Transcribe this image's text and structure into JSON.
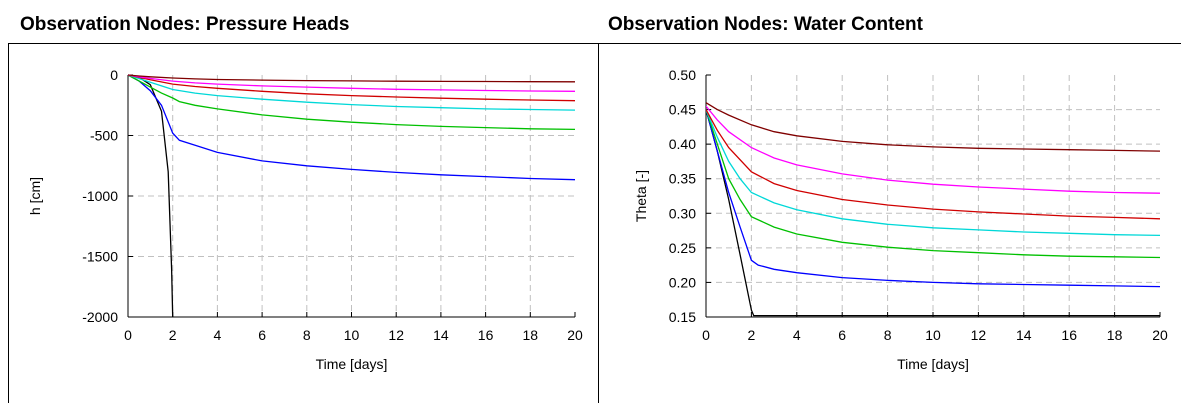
{
  "chart_data": [
    {
      "type": "line",
      "title": "Observation Nodes: Pressure Heads",
      "xlabel": "Time [days]",
      "ylabel": "h [cm]",
      "xlim": [
        0,
        20
      ],
      "ylim": [
        -2000,
        0
      ],
      "xticks": [
        "0",
        "2",
        "4",
        "6",
        "8",
        "10",
        "12",
        "14",
        "16",
        "18",
        "20"
      ],
      "yticks": [
        "-2000",
        "-1500",
        "-1000",
        "-500",
        "0"
      ],
      "grid": true,
      "series": [
        {
          "color": "#000000",
          "x": [
            0,
            0.5,
            1,
            1.5,
            1.8,
            1.95,
            2.0
          ],
          "y": [
            0,
            -20,
            -80,
            -300,
            -800,
            -1600,
            -2000
          ]
        },
        {
          "color": "#0000ff",
          "x": [
            0,
            0.5,
            1,
            1.5,
            2,
            2.3,
            3,
            4,
            6,
            8,
            10,
            12,
            14,
            16,
            18,
            20
          ],
          "y": [
            0,
            -50,
            -130,
            -250,
            -480,
            -540,
            -580,
            -640,
            -710,
            -750,
            -780,
            -805,
            -825,
            -840,
            -855,
            -865
          ]
        },
        {
          "color": "#00c000",
          "x": [
            0,
            0.5,
            1,
            1.5,
            2,
            2.3,
            3,
            4,
            6,
            8,
            10,
            12,
            14,
            16,
            18,
            20
          ],
          "y": [
            0,
            -50,
            -100,
            -150,
            -190,
            -220,
            -250,
            -280,
            -330,
            -365,
            -390,
            -410,
            -425,
            -435,
            -445,
            -450
          ]
        },
        {
          "color": "#00d8d8",
          "x": [
            0,
            0.5,
            1,
            1.5,
            2,
            3,
            4,
            6,
            8,
            10,
            12,
            14,
            16,
            18,
            20
          ],
          "y": [
            0,
            -30,
            -60,
            -90,
            -120,
            -150,
            -170,
            -200,
            -225,
            -245,
            -260,
            -270,
            -280,
            -285,
            -290
          ]
        },
        {
          "color": "#d00000",
          "x": [
            0,
            0.5,
            1,
            2,
            3,
            4,
            6,
            8,
            10,
            12,
            14,
            16,
            18,
            20
          ],
          "y": [
            0,
            -20,
            -40,
            -75,
            -95,
            -110,
            -135,
            -155,
            -170,
            -182,
            -192,
            -200,
            -207,
            -212
          ]
        },
        {
          "color": "#ff00ff",
          "x": [
            0,
            0.5,
            1,
            2,
            3,
            4,
            6,
            8,
            10,
            12,
            14,
            16,
            18,
            20
          ],
          "y": [
            0,
            -15,
            -28,
            -50,
            -65,
            -75,
            -90,
            -100,
            -110,
            -118,
            -123,
            -128,
            -132,
            -135
          ]
        },
        {
          "color": "#800000",
          "x": [
            0,
            0.5,
            1,
            2,
            3,
            4,
            6,
            8,
            10,
            12,
            14,
            16,
            18,
            20
          ],
          "y": [
            0,
            -8,
            -15,
            -25,
            -32,
            -37,
            -42,
            -46,
            -49,
            -51,
            -53,
            -54,
            -55,
            -56
          ]
        }
      ]
    },
    {
      "type": "line",
      "title": "Observation Nodes: Water Content",
      "xlabel": "Time [days]",
      "ylabel": "Theta [-]",
      "xlim": [
        0,
        20
      ],
      "ylim": [
        0.15,
        0.5
      ],
      "xticks": [
        "0",
        "2",
        "4",
        "6",
        "8",
        "10",
        "12",
        "14",
        "16",
        "18",
        "20"
      ],
      "yticks": [
        "0.15",
        "0.20",
        "0.25",
        "0.30",
        "0.35",
        "0.40",
        "0.45",
        "0.50"
      ],
      "grid": true,
      "series": [
        {
          "color": "#000000",
          "x": [
            0,
            0.5,
            1,
            1.5,
            2.0,
            2.1,
            20
          ],
          "y": [
            0.45,
            0.39,
            0.32,
            0.24,
            0.16,
            0.152,
            0.152
          ]
        },
        {
          "color": "#0000ff",
          "x": [
            0,
            0.5,
            1,
            1.5,
            2,
            2.3,
            3,
            4,
            6,
            8,
            10,
            12,
            14,
            16,
            18,
            20
          ],
          "y": [
            0.45,
            0.39,
            0.33,
            0.28,
            0.232,
            0.225,
            0.219,
            0.214,
            0.207,
            0.203,
            0.2,
            0.198,
            0.197,
            0.196,
            0.195,
            0.194
          ]
        },
        {
          "color": "#00c000",
          "x": [
            0,
            0.5,
            1,
            1.5,
            2,
            3,
            4,
            6,
            8,
            10,
            12,
            14,
            16,
            18,
            20
          ],
          "y": [
            0.45,
            0.4,
            0.35,
            0.32,
            0.295,
            0.28,
            0.27,
            0.258,
            0.251,
            0.246,
            0.243,
            0.24,
            0.238,
            0.237,
            0.236
          ]
        },
        {
          "color": "#00d8d8",
          "x": [
            0,
            0.5,
            1,
            1.5,
            2,
            3,
            4,
            6,
            8,
            10,
            12,
            14,
            16,
            18,
            20
          ],
          "y": [
            0.45,
            0.41,
            0.375,
            0.35,
            0.33,
            0.315,
            0.305,
            0.292,
            0.284,
            0.279,
            0.276,
            0.273,
            0.271,
            0.269,
            0.268
          ]
        },
        {
          "color": "#d00000",
          "x": [
            0,
            0.5,
            1,
            2,
            3,
            4,
            6,
            8,
            10,
            12,
            14,
            16,
            18,
            20
          ],
          "y": [
            0.45,
            0.42,
            0.395,
            0.36,
            0.343,
            0.333,
            0.32,
            0.312,
            0.306,
            0.302,
            0.299,
            0.296,
            0.294,
            0.292
          ]
        },
        {
          "color": "#ff00ff",
          "x": [
            0,
            0.5,
            1,
            2,
            3,
            4,
            6,
            8,
            10,
            12,
            14,
            16,
            18,
            20
          ],
          "y": [
            0.455,
            0.435,
            0.418,
            0.395,
            0.38,
            0.37,
            0.357,
            0.348,
            0.342,
            0.338,
            0.335,
            0.332,
            0.33,
            0.329
          ]
        },
        {
          "color": "#800000",
          "x": [
            0,
            0.5,
            1,
            2,
            3,
            4,
            6,
            8,
            10,
            12,
            14,
            16,
            18,
            20
          ],
          "y": [
            0.46,
            0.45,
            0.442,
            0.428,
            0.418,
            0.412,
            0.404,
            0.399,
            0.396,
            0.394,
            0.393,
            0.392,
            0.391,
            0.39
          ]
        }
      ]
    }
  ]
}
